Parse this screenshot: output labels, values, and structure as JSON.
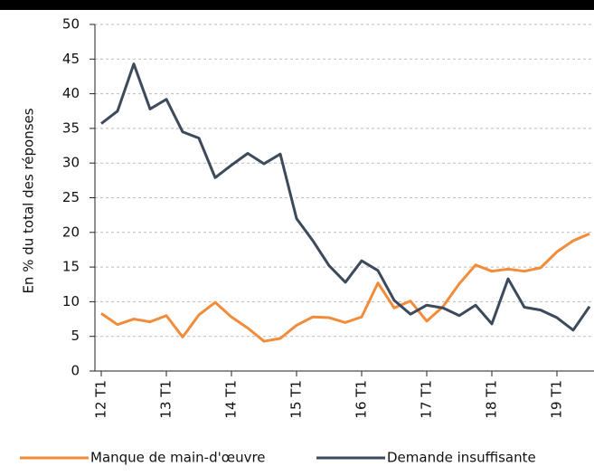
{
  "chart_data": {
    "type": "line",
    "ylabel": "En % du total des réponses",
    "categories": [
      "12 T1",
      null,
      null,
      null,
      "13 T1",
      null,
      null,
      null,
      "14 T1",
      null,
      null,
      null,
      "15 T1",
      null,
      null,
      null,
      "16 T1",
      null,
      null,
      null,
      "17 T1",
      null,
      null,
      null,
      "18 T1",
      null,
      null,
      null,
      "19 T1",
      null,
      null
    ],
    "series": [
      {
        "name": "Manque de main-d'œuvre",
        "color": "#f28c3b",
        "values": [
          8.3,
          6.7,
          7.5,
          7.1,
          8,
          4.9,
          8.1,
          9.9,
          7.8,
          6.2,
          4.3,
          4.7,
          6.6,
          7.8,
          7.7,
          7,
          7.8,
          12.7,
          9.1,
          10.1,
          7.2,
          9.3,
          12.6,
          15.3,
          14.4,
          14.7,
          14.4,
          14.9,
          17.2,
          18.8,
          19.8
        ]
      },
      {
        "name": "Demande insuffisante",
        "color": "#3d4a5c",
        "values": [
          35.7,
          37.5,
          44.3,
          37.8,
          39.2,
          34.5,
          33.6,
          27.9,
          29.7,
          31.4,
          29.9,
          31.3,
          22,
          18.8,
          15.2,
          12.8,
          15.9,
          14.5,
          10.2,
          8.2,
          9.5,
          9.1,
          8,
          9.5,
          6.8,
          13.3,
          9.2,
          8.8,
          7.7,
          5.9,
          9.3
        ]
      }
    ],
    "ylim": [
      0,
      50
    ],
    "yticks": [
      0,
      5,
      10,
      15,
      20,
      25,
      30,
      35,
      40,
      45,
      50
    ],
    "grid": true
  }
}
